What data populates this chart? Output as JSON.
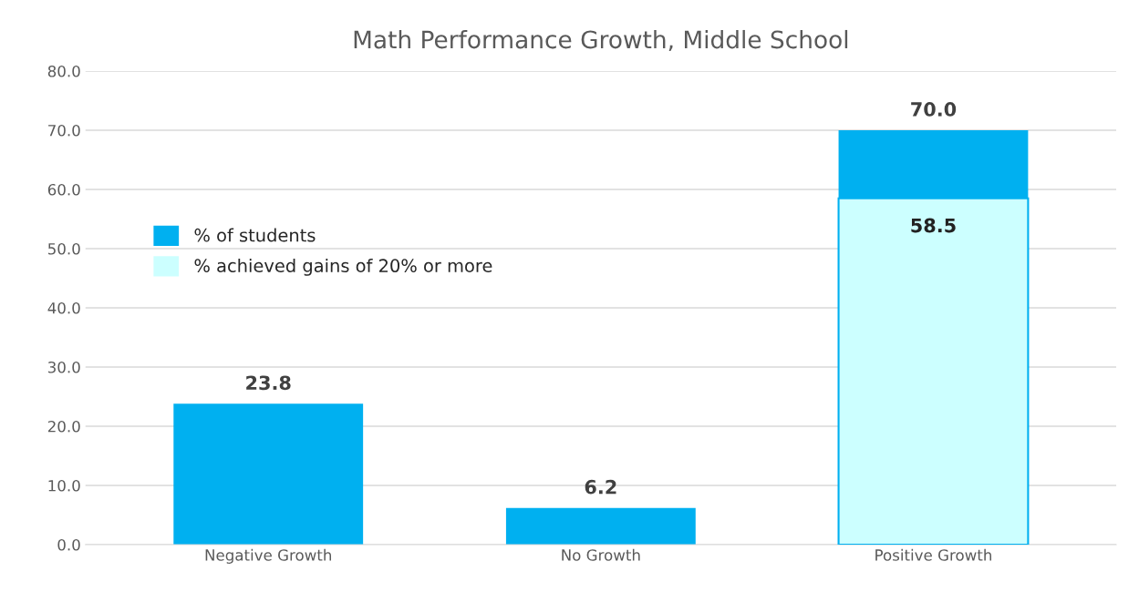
{
  "chart_data": {
    "type": "bar",
    "title": "Math Performance Growth, Middle School",
    "categories": [
      "Negative Growth",
      "No Growth",
      "Positive Growth"
    ],
    "series": [
      {
        "name": "% of students",
        "color": "#00b0f0",
        "values": [
          23.8,
          6.2,
          70.0
        ],
        "value_labels": [
          "23.8",
          "6.2",
          "70.0"
        ]
      },
      {
        "name": "% achieved gains of 20% or more",
        "color": "#ccffff",
        "values": [
          null,
          null,
          58.5
        ],
        "value_labels": [
          null,
          null,
          "58.5"
        ]
      }
    ],
    "ylim": [
      0,
      80
    ],
    "yticks": [
      {
        "value": 0,
        "label": "0.0"
      },
      {
        "value": 10,
        "label": "10.0"
      },
      {
        "value": 20,
        "label": "20.0"
      },
      {
        "value": 30,
        "label": "30.0"
      },
      {
        "value": 40,
        "label": "40.0"
      },
      {
        "value": 50,
        "label": "50.0"
      },
      {
        "value": 60,
        "label": "60.0"
      },
      {
        "value": 70,
        "label": "70.0"
      },
      {
        "value": 80,
        "label": "80.0"
      }
    ],
    "grid": "y",
    "legend": "left"
  }
}
